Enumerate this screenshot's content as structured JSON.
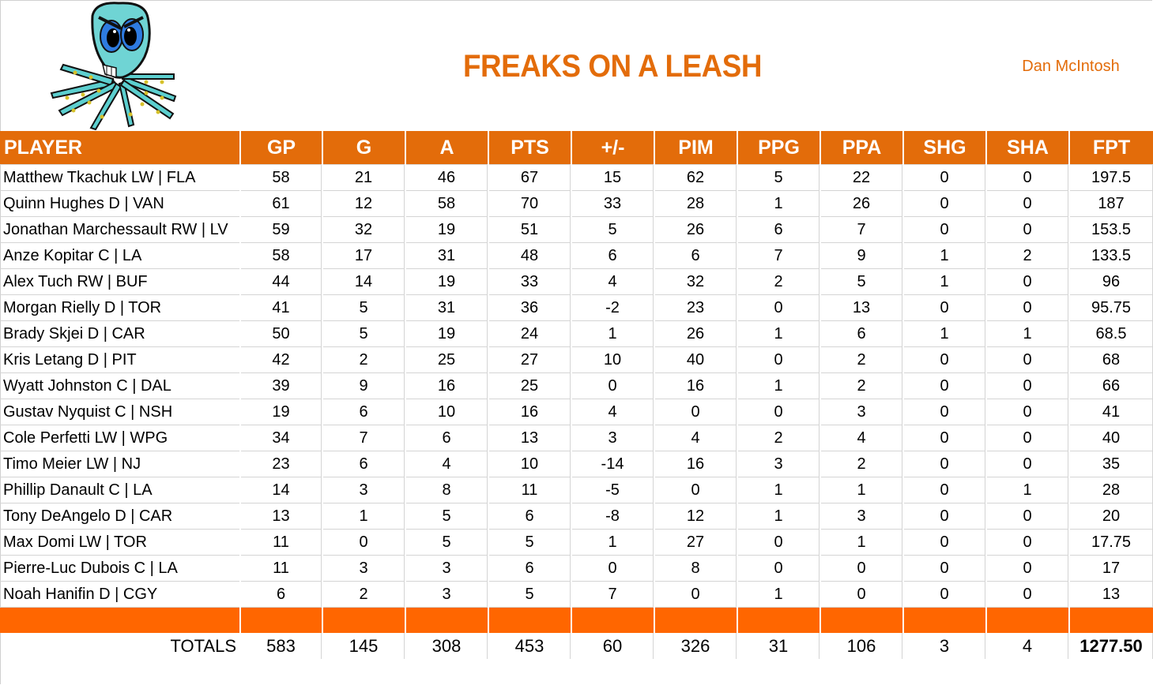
{
  "header": {
    "team_name": "FREAKS ON A LEASH",
    "owner": "Dan McIntosh",
    "logo_icon": "angry-octopus-mascot-icon"
  },
  "colors": {
    "header_orange": "#E36C0A",
    "separator_orange": "#FF6600",
    "gridline": "#D4D4D4"
  },
  "table": {
    "columns": [
      "PLAYER",
      "GP",
      "G",
      "A",
      "PTS",
      "+/-",
      "PIM",
      "PPG",
      "PPA",
      "SHG",
      "SHA",
      "FPT"
    ],
    "rows": [
      [
        "Matthew Tkachuk LW | FLA",
        "58",
        "21",
        "46",
        "67",
        "15",
        "62",
        "5",
        "22",
        "0",
        "0",
        "197.5"
      ],
      [
        "Quinn Hughes D | VAN",
        "61",
        "12",
        "58",
        "70",
        "33",
        "28",
        "1",
        "26",
        "0",
        "0",
        "187"
      ],
      [
        "Jonathan Marchessault RW | LV",
        "59",
        "32",
        "19",
        "51",
        "5",
        "26",
        "6",
        "7",
        "0",
        "0",
        "153.5"
      ],
      [
        "Anze Kopitar C | LA",
        "58",
        "17",
        "31",
        "48",
        "6",
        "6",
        "7",
        "9",
        "1",
        "2",
        "133.5"
      ],
      [
        "Alex Tuch RW | BUF",
        "44",
        "14",
        "19",
        "33",
        "4",
        "32",
        "2",
        "5",
        "1",
        "0",
        "96"
      ],
      [
        "Morgan Rielly D | TOR",
        "41",
        "5",
        "31",
        "36",
        "-2",
        "23",
        "0",
        "13",
        "0",
        "0",
        "95.75"
      ],
      [
        "Brady Skjei D | CAR",
        "50",
        "5",
        "19",
        "24",
        "1",
        "26",
        "1",
        "6",
        "1",
        "1",
        "68.5"
      ],
      [
        "Kris Letang D | PIT",
        "42",
        "2",
        "25",
        "27",
        "10",
        "40",
        "0",
        "2",
        "0",
        "0",
        "68"
      ],
      [
        "Wyatt Johnston C | DAL",
        "39",
        "9",
        "16",
        "25",
        "0",
        "16",
        "1",
        "2",
        "0",
        "0",
        "66"
      ],
      [
        "Gustav Nyquist C | NSH",
        "19",
        "6",
        "10",
        "16",
        "4",
        "0",
        "0",
        "3",
        "0",
        "0",
        "41"
      ],
      [
        "Cole Perfetti LW | WPG",
        "34",
        "7",
        "6",
        "13",
        "3",
        "4",
        "2",
        "4",
        "0",
        "0",
        "40"
      ],
      [
        "Timo Meier LW | NJ",
        "23",
        "6",
        "4",
        "10",
        "-14",
        "16",
        "3",
        "2",
        "0",
        "0",
        "35"
      ],
      [
        "Phillip Danault C | LA",
        "14",
        "3",
        "8",
        "11",
        "-5",
        "0",
        "1",
        "1",
        "0",
        "1",
        "28"
      ],
      [
        "Tony DeAngelo D | CAR",
        "13",
        "1",
        "5",
        "6",
        "-8",
        "12",
        "1",
        "3",
        "0",
        "0",
        "20"
      ],
      [
        "Max Domi LW | TOR",
        "11",
        "0",
        "5",
        "5",
        "1",
        "27",
        "0",
        "1",
        "0",
        "0",
        "17.75"
      ],
      [
        "Pierre-Luc Dubois C | LA",
        "11",
        "3",
        "3",
        "6",
        "0",
        "8",
        "0",
        "0",
        "0",
        "0",
        "17"
      ],
      [
        "Noah Hanifin D | CGY",
        "6",
        "2",
        "3",
        "5",
        "7",
        "0",
        "1",
        "0",
        "0",
        "0",
        "13"
      ]
    ],
    "totals": [
      "TOTALS",
      "583",
      "145",
      "308",
      "453",
      "60",
      "326",
      "31",
      "106",
      "3",
      "4",
      "1277.50"
    ]
  }
}
